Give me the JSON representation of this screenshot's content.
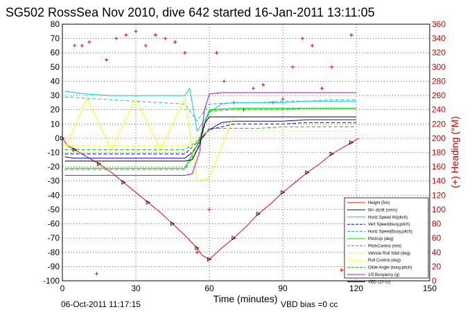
{
  "chart_data": {
    "type": "line",
    "title": "SG502 RossSea Nov 2010, dive 642 started 16-Jan-2011 13:11:05",
    "xlabel": "Time (minutes)",
    "ylabel": "",
    "ylabel_right": "(+) Heading (°M)",
    "xlim": [
      0,
      150
    ],
    "ylim": [
      -100,
      80
    ],
    "ylim_right": [
      0,
      360
    ],
    "xticks": [
      0,
      30,
      60,
      90,
      120,
      150
    ],
    "yticks": [
      -100,
      -90,
      -80,
      -70,
      -60,
      -50,
      -40,
      -30,
      -20,
      -10,
      0,
      10,
      20,
      30,
      40,
      50,
      60,
      70,
      80
    ],
    "yticks_right": [
      0,
      20,
      40,
      60,
      80,
      100,
      120,
      140,
      160,
      180,
      200,
      220,
      240,
      260,
      280,
      300,
      320,
      340,
      360
    ],
    "grid": true,
    "legend_position": "bottom-right",
    "footer_left": "06-Oct-2011 11:17:15",
    "footer_right": "VBD bias =0 cc",
    "series": [
      {
        "name": "Height (5m)",
        "color": "#ff0000",
        "style": "solid",
        "x": [
          0,
          2,
          5,
          10,
          15,
          20,
          25,
          30,
          35,
          40,
          45,
          50,
          55,
          57,
          60,
          65,
          70,
          75,
          80,
          85,
          90,
          95,
          100,
          105,
          110,
          115,
          118,
          121
        ],
        "y": [
          0,
          -5,
          -8,
          -13,
          -18,
          -24,
          -31,
          -38,
          -45,
          -52,
          -60,
          -68,
          -77,
          -82,
          -85,
          -77,
          -70,
          -62,
          -53,
          -46,
          -38,
          -31,
          -24,
          -18,
          -11,
          -6,
          -3,
          0
        ]
      },
      {
        "name": "W= dz/dt (cm/s)",
        "color": "#0000cc",
        "style": "solid",
        "x": [
          1,
          5,
          10,
          20,
          30,
          40,
          50,
          53,
          57,
          60,
          65,
          70,
          80,
          90,
          100,
          110,
          120
        ],
        "y": [
          -13,
          -14,
          -14,
          -14,
          -14,
          -14,
          -14,
          -10,
          0,
          6,
          11,
          12,
          12,
          12,
          13,
          13,
          13
        ]
      },
      {
        "name": "Horiz Speed W(pitch)",
        "color": "#00cccc",
        "style": "solid",
        "x": [
          1,
          5,
          10,
          20,
          30,
          40,
          50,
          52,
          55,
          60,
          65,
          70,
          80,
          90,
          100,
          110,
          120
        ],
        "y": [
          33,
          32,
          31,
          30,
          30,
          30,
          30,
          35,
          5,
          18,
          24,
          25,
          25,
          25,
          26,
          26,
          26
        ]
      },
      {
        "name": "Vert Speed(buoy,pitch)",
        "color": "#0000cc",
        "style": "dashed",
        "x": [
          1,
          10,
          20,
          30,
          40,
          50,
          55,
          60,
          70,
          80,
          90,
          100,
          110,
          120
        ],
        "y": [
          -11,
          -11,
          -11,
          -11,
          -11,
          -11,
          -3,
          6,
          10,
          10,
          10,
          11,
          11,
          11
        ]
      },
      {
        "name": "Horiz Speed(buoy,pitch)",
        "color": "#00cccc",
        "style": "dashed",
        "x": [
          1,
          10,
          20,
          30,
          40,
          50,
          55,
          60,
          70,
          80,
          90,
          100,
          110,
          120
        ],
        "y": [
          29,
          28,
          27,
          26,
          25,
          24,
          12,
          24,
          25,
          25,
          26,
          26,
          27,
          27
        ]
      },
      {
        "name": "PitchUp (deg)",
        "color": "#00cc00",
        "style": "solid",
        "x": [
          1,
          10,
          20,
          30,
          40,
          50,
          55,
          60,
          70,
          80,
          90,
          100,
          110,
          120
        ],
        "y": [
          -21,
          -21,
          -21,
          -21,
          -21,
          -21,
          -5,
          20,
          21,
          21,
          21,
          21,
          21,
          21
        ]
      },
      {
        "name": "PitchControl (mm)",
        "color": "#00cc00",
        "style": "dashed",
        "x": [
          1,
          10,
          20,
          30,
          40,
          50,
          55,
          60,
          70,
          80,
          90,
          100,
          110,
          120
        ],
        "y": [
          -8,
          -8,
          -8,
          -8,
          -8,
          -8,
          -2,
          7,
          7,
          7,
          8,
          8,
          8,
          8
        ]
      },
      {
        "name": "Vehicle Roll Stbd (deg)",
        "color": "#ffff00",
        "style": "solid",
        "x": [
          1,
          10,
          20,
          30,
          40,
          50,
          55,
          60,
          70,
          80,
          90,
          100,
          110,
          120
        ],
        "y": [
          -8,
          28,
          -8,
          28,
          -8,
          28,
          -30,
          -28,
          15,
          15,
          15,
          15,
          15,
          15
        ]
      },
      {
        "name": "Roll Control (deg)",
        "color": "#ffff00",
        "style": "dashed",
        "x": [
          1,
          10,
          20,
          30,
          40,
          50,
          55,
          60,
          70,
          80,
          90,
          100,
          110,
          120
        ],
        "y": [
          -5,
          -5,
          -5,
          -5,
          -5,
          -5,
          0,
          5,
          5,
          5,
          5,
          5,
          5,
          5
        ]
      },
      {
        "name": "Glide Angle (buoy,pitch)",
        "color": "#00cc00",
        "style": "dashed",
        "x": [
          1,
          10,
          20,
          30,
          40,
          50,
          55,
          60,
          70,
          80,
          90,
          100,
          110,
          120
        ],
        "y": [
          -22,
          -22,
          -22,
          -22,
          -22,
          -22,
          -8,
          19,
          20,
          20,
          20,
          21,
          21,
          21
        ]
      },
      {
        "name": "1/5 Buoyancy (g)",
        "color": "#cc00cc",
        "style": "solid",
        "x": [
          1,
          10,
          20,
          30,
          40,
          50,
          53,
          56,
          58,
          60,
          65,
          70,
          80,
          90,
          100,
          110,
          120
        ],
        "y": [
          -26,
          -26,
          -26,
          -26,
          -26,
          -26,
          -25,
          -10,
          20,
          31,
          32,
          32,
          32,
          32,
          32,
          32,
          32
        ]
      },
      {
        "name": "VBD (10 cc)",
        "color": "#000000",
        "style": "solid",
        "x": [
          1,
          10,
          20,
          30,
          40,
          50,
          53,
          56,
          58,
          60,
          70,
          80,
          90,
          100,
          110,
          120
        ],
        "y": [
          -16,
          -16,
          -16,
          -16,
          -16,
          -16,
          -15,
          -5,
          10,
          15,
          15,
          15,
          15,
          15,
          15,
          15
        ]
      }
    ],
    "heading_series": {
      "name": "(+) Heading (°M)",
      "color": "#ff0000",
      "marker": "+",
      "x": [
        5,
        8,
        11,
        14,
        18,
        22,
        26,
        30,
        34,
        38,
        42,
        46,
        50,
        55,
        60,
        63,
        66,
        70,
        74,
        78,
        82,
        86,
        90,
        94,
        98,
        102,
        106,
        110,
        114,
        118
      ],
      "y": [
        330,
        330,
        335,
        10,
        310,
        340,
        345,
        350,
        330,
        345,
        340,
        335,
        320,
        40,
        100,
        320,
        280,
        250,
        240,
        270,
        275,
        250,
        255,
        300,
        340,
        330,
        270,
        300,
        15,
        345
      ]
    }
  }
}
